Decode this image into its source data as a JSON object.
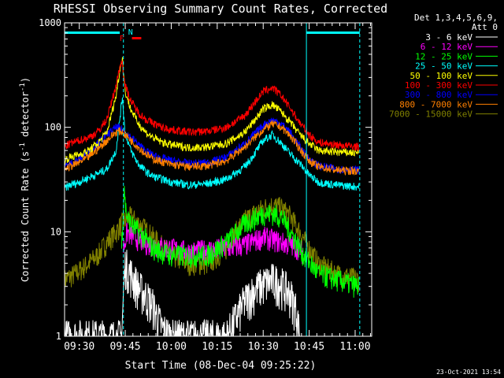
{
  "chart_data": {
    "type": "line",
    "title": "RHESSI Observing Summary Count Rates, Corrected",
    "xlabel": "Start Time (08-Dec-04 09:25:22)",
    "ylabel_main": "Corrected Count Rate (s",
    "ylabel_sup1": "-1",
    "ylabel_mid": " detector",
    "ylabel_sup2": "-1",
    "ylabel_end": ")",
    "yscale": "log",
    "ylim": [
      1,
      1000
    ],
    "xlim_minutes": [
      9.42,
      11.09
    ],
    "x_ticks": [
      {
        "label": "09:30",
        "v": 9.5
      },
      {
        "label": "09:45",
        "v": 9.75
      },
      {
        "label": "10:00",
        "v": 10.0
      },
      {
        "label": "10:15",
        "v": 10.25
      },
      {
        "label": "10:30",
        "v": 10.5
      },
      {
        "label": "10:45",
        "v": 10.75
      },
      {
        "label": "11:00",
        "v": 11.0
      }
    ],
    "y_ticks": [
      {
        "label": "1",
        "v": 1
      },
      {
        "label": "10",
        "v": 10
      },
      {
        "label": "100",
        "v": 100
      },
      {
        "label": "1000",
        "v": 1000
      }
    ],
    "legend_header": [
      "Det 1,3,4,5,6,9,",
      "Att 0"
    ],
    "series": [
      {
        "name": "3 - 6 keV",
        "color": "#ffffff",
        "x": [
          9.42,
          9.73,
          9.74,
          9.75,
          9.78,
          9.82,
          9.86,
          9.9,
          9.95,
          10.0,
          10.3,
          10.35,
          10.4,
          10.45,
          10.5,
          10.55,
          10.6,
          10.65,
          10.68,
          10.7
        ],
        "y": [
          1,
          1,
          2.5,
          5,
          4,
          3,
          2.5,
          2,
          1.2,
          1,
          1,
          1.5,
          2.2,
          2.8,
          3.2,
          3.5,
          3.2,
          2.5,
          1.8,
          1
        ]
      },
      {
        "name": "6 - 12 keV",
        "color": "#ff00ff",
        "x": [
          9.74,
          9.76,
          9.8,
          9.85,
          9.9,
          10.0,
          10.1,
          10.2,
          10.3,
          10.4,
          10.5,
          10.6,
          10.65,
          10.7,
          10.72
        ],
        "y": [
          7,
          10,
          9,
          8,
          7.5,
          7,
          6.5,
          6.8,
          7,
          7.5,
          9,
          8,
          7.5,
          7,
          6
        ]
      },
      {
        "name": "12 - 25 keV",
        "color": "#00ff00",
        "x": [
          9.73,
          9.74,
          9.745,
          9.75,
          9.76,
          9.78,
          9.8,
          9.85,
          9.9,
          10.0,
          10.2,
          10.3,
          10.4,
          10.5,
          10.55,
          10.6,
          10.65,
          10.72,
          10.8,
          10.9,
          11.02
        ],
        "y": [
          7,
          20,
          28,
          18,
          14,
          12,
          11,
          9,
          7,
          6,
          6,
          8,
          12,
          15,
          15,
          14,
          10,
          6,
          4,
          3.5,
          3
        ]
      },
      {
        "name": "25 - 50 keV",
        "color": "#00ffff",
        "x": [
          9.42,
          9.45,
          9.5,
          9.55,
          9.6,
          9.65,
          9.7,
          9.72,
          9.735,
          9.74,
          9.75,
          9.78,
          9.82,
          9.86,
          9.9,
          9.95,
          10.0,
          10.1,
          10.2,
          10.3,
          10.4,
          10.45,
          10.5,
          10.55,
          10.6,
          10.65,
          10.7,
          10.75,
          10.8,
          10.9,
          11.02
        ],
        "y": [
          26,
          28,
          30,
          33,
          36,
          40,
          60,
          120,
          200,
          140,
          90,
          60,
          45,
          38,
          34,
          32,
          30,
          28,
          29,
          32,
          42,
          55,
          75,
          85,
          70,
          55,
          45,
          35,
          30,
          28,
          27
        ]
      },
      {
        "name": "50 - 100 keV",
        "color": "#ffff00",
        "x": [
          9.42,
          9.45,
          9.5,
          9.55,
          9.6,
          9.65,
          9.7,
          9.72,
          9.735,
          9.74,
          9.75,
          9.78,
          9.82,
          9.86,
          9.9,
          9.95,
          10.0,
          10.1,
          10.2,
          10.3,
          10.4,
          10.45,
          10.5,
          10.55,
          10.6,
          10.65,
          10.7,
          10.75,
          10.8,
          10.9,
          11.02
        ],
        "y": [
          48,
          52,
          55,
          60,
          70,
          90,
          200,
          350,
          480,
          330,
          220,
          150,
          110,
          90,
          80,
          72,
          68,
          64,
          65,
          70,
          90,
          115,
          150,
          165,
          140,
          110,
          85,
          70,
          60,
          58,
          57
        ]
      },
      {
        "name": "100 - 300 keV",
        "color": "#ff0000",
        "x": [
          9.42,
          9.45,
          9.5,
          9.55,
          9.6,
          9.65,
          9.7,
          9.72,
          9.735,
          9.74,
          9.75,
          9.78,
          9.82,
          9.86,
          9.9,
          9.95,
          10.0,
          10.1,
          10.2,
          10.3,
          10.4,
          10.45,
          10.5,
          10.55,
          10.6,
          10.65,
          10.7,
          10.75,
          10.8,
          10.9,
          11.02
        ],
        "y": [
          65,
          70,
          75,
          80,
          90,
          120,
          250,
          380,
          430,
          330,
          250,
          180,
          140,
          120,
          110,
          100,
          95,
          90,
          92,
          100,
          130,
          170,
          220,
          240,
          200,
          150,
          110,
          85,
          72,
          68,
          65
        ]
      },
      {
        "name": "300 - 800 keV",
        "color": "#0000ff",
        "x": [
          9.42,
          9.5,
          9.55,
          9.6,
          9.65,
          9.7,
          9.72,
          9.735,
          9.75,
          9.8,
          9.85,
          9.9,
          10.0,
          10.1,
          10.2,
          10.3,
          10.4,
          10.5,
          10.55,
          10.6,
          10.65,
          10.7,
          10.75,
          10.8,
          10.9,
          11.02
        ],
        "y": [
          42,
          50,
          58,
          70,
          85,
          100,
          98,
          95,
          90,
          75,
          62,
          54,
          48,
          45,
          46,
          52,
          70,
          105,
          118,
          108,
          88,
          65,
          50,
          43,
          40,
          39
        ]
      },
      {
        "name": "800 - 7000 keV",
        "color": "#ff8000",
        "x": [
          9.42,
          9.5,
          9.55,
          9.6,
          9.65,
          9.7,
          9.72,
          9.735,
          9.75,
          9.8,
          9.85,
          9.9,
          10.0,
          10.1,
          10.2,
          10.3,
          10.4,
          10.5,
          10.55,
          10.6,
          10.65,
          10.7,
          10.75,
          10.8,
          10.9,
          11.02
        ],
        "y": [
          40,
          46,
          52,
          62,
          75,
          90,
          92,
          90,
          85,
          70,
          58,
          50,
          44,
          42,
          43,
          48,
          65,
          95,
          108,
          100,
          82,
          62,
          48,
          42,
          39,
          38
        ]
      },
      {
        "name": "7000 - 15000 keV",
        "color": "#808000",
        "x": [
          9.42,
          9.48,
          9.55,
          9.6,
          9.65,
          9.7,
          9.73,
          9.75,
          9.78,
          9.8,
          9.85,
          9.9,
          10.0,
          10.1,
          10.2,
          10.3,
          10.35,
          10.4,
          10.45,
          10.5,
          10.55,
          10.6,
          10.65,
          10.7,
          10.75,
          10.8,
          10.9,
          11.02
        ],
        "y": [
          3.5,
          4,
          5,
          6,
          8,
          10,
          12,
          13,
          14,
          13,
          11,
          9,
          6,
          5,
          5,
          7,
          10,
          13,
          15,
          17,
          18,
          17,
          14,
          10,
          7,
          5,
          4,
          3.5
        ]
      }
    ],
    "markers": {
      "solid_x": [
        9.42,
        10.735
      ],
      "dashed_x": [
        9.74,
        11.025
      ],
      "top_bars": [
        [
          9.42,
          9.72
        ],
        [
          10.735,
          11.025
        ]
      ],
      "flare_bar": [
        9.735,
        9.76
      ],
      "f_label": "F",
      "n_label": "N"
    },
    "grid": false,
    "legend_placement": "right"
  },
  "footer": {
    "timestamp": "23-Oct-2021 13:54"
  }
}
